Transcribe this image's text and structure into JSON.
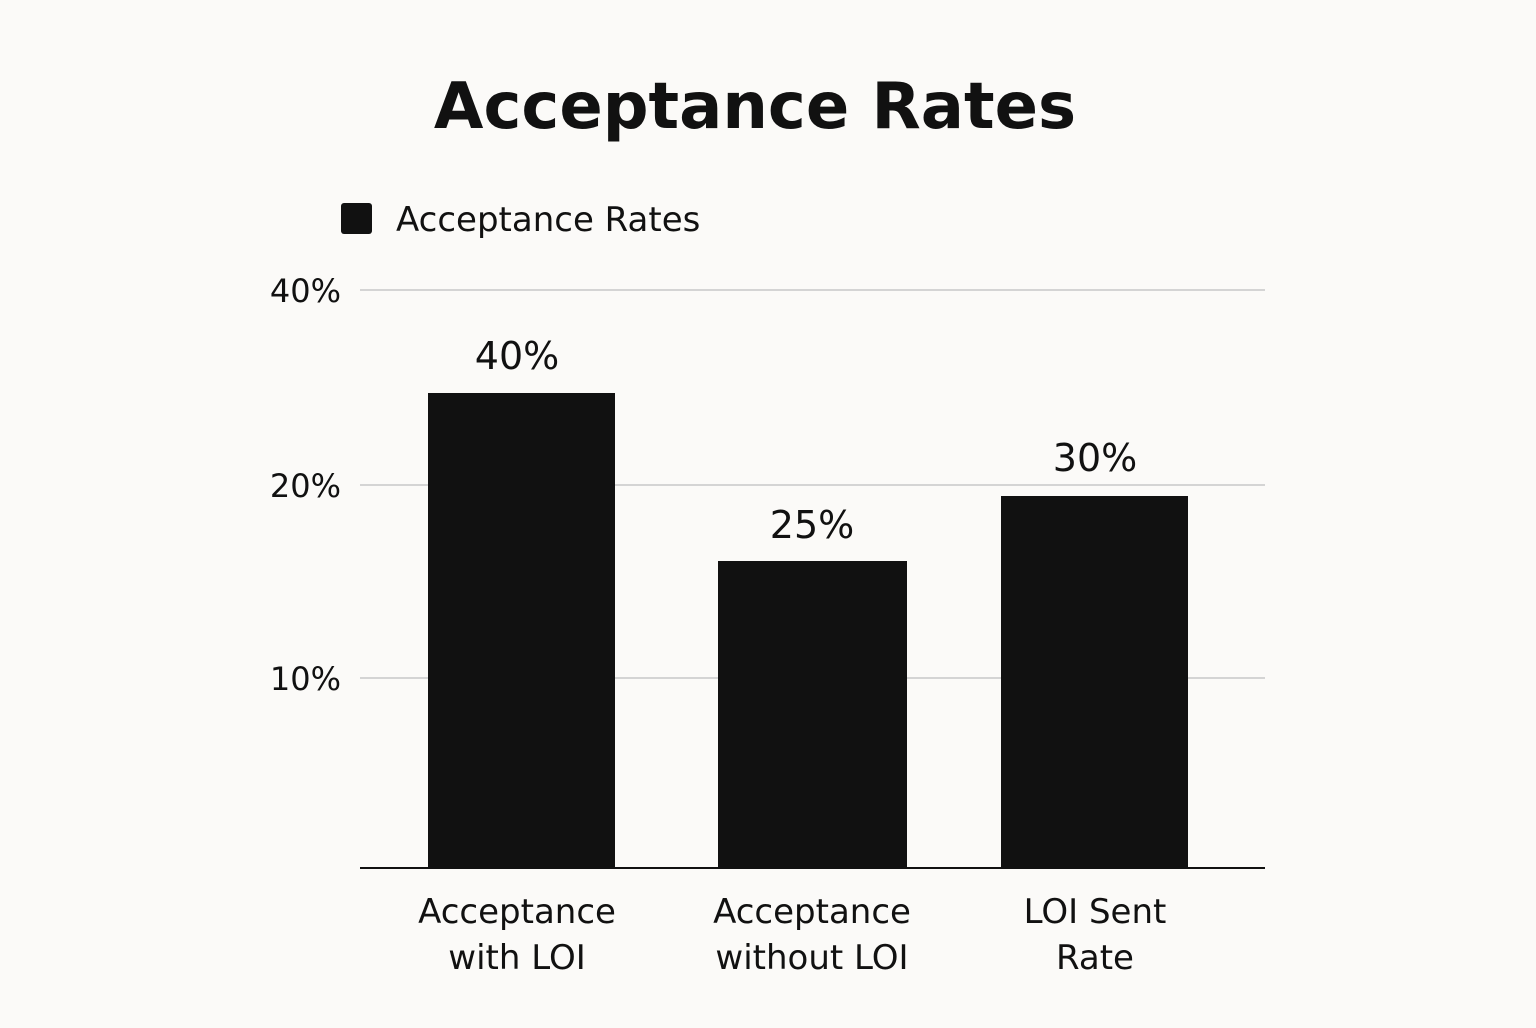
{
  "chart_data": {
    "type": "bar",
    "title": "Acceptance Rates",
    "legend": {
      "placement": "top-left",
      "entries": [
        {
          "label": "Acceptance Rates",
          "color": "#111111"
        }
      ]
    },
    "categories": [
      [
        "Acceptance",
        "with LOI"
      ],
      [
        "Acceptance",
        "without LOI"
      ],
      [
        "LOI Sent",
        "Rate"
      ]
    ],
    "series": [
      {
        "name": "Acceptance Rates",
        "values": [
          40,
          25,
          30
        ],
        "data_labels": [
          "40%",
          "25%",
          "30%"
        ],
        "color": "#111111"
      }
    ],
    "y_ticks": [
      {
        "label": "40%",
        "value": 40
      },
      {
        "label": "20%",
        "value": 20
      },
      {
        "label": "10%",
        "value": 10
      }
    ],
    "xlabel": "",
    "ylabel": "",
    "grid": true
  }
}
